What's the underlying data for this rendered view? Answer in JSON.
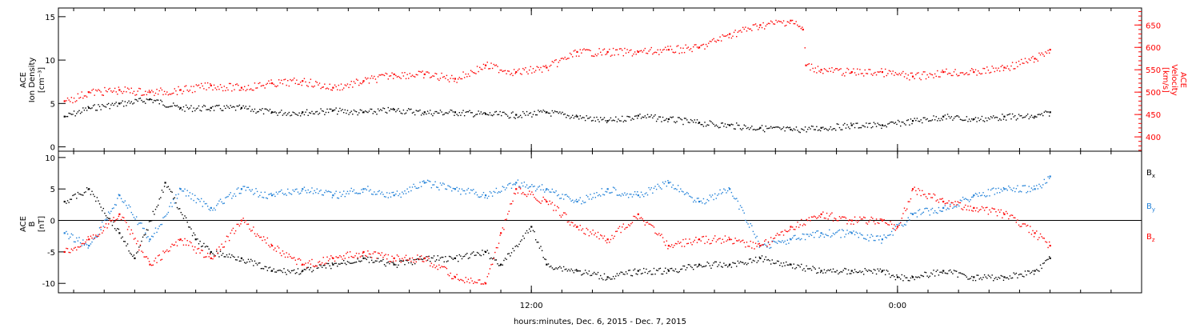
{
  "xaxis": {
    "label": "hours:minutes, Dec.  6, 2015 - Dec.  7, 2015",
    "ticks": [
      {
        "t": 12,
        "label": "12:00"
      },
      {
        "t": 24,
        "label": "0:00"
      }
    ],
    "range_hours": [
      -3.5,
      32
    ]
  },
  "chart_data": [
    {
      "type": "scatter",
      "panel": "top",
      "ylabel_lines": [
        "ACE",
        "Ion Density",
        "[cm⁻³]"
      ],
      "ylim": [
        -0.5,
        16
      ],
      "yticks": [
        0,
        5,
        10,
        15
      ],
      "y2label_lines": [
        "ACE",
        "Velocity",
        "[km/s]"
      ],
      "y2lim": [
        368,
        688
      ],
      "y2ticks": [
        400,
        450,
        500,
        550,
        600,
        650
      ],
      "series": [
        {
          "color": "#000000",
          "axis": "left",
          "x_hours": [
            -3.3,
            -2.5,
            -1.5,
            -0.5,
            0.5,
            1.5,
            2.5,
            3.5,
            4.5,
            5.5,
            6.5,
            7.5,
            8.5,
            9.5,
            10.5,
            11.5,
            12.5,
            13.5,
            14.5,
            15.5,
            16.5,
            17.5,
            18.5,
            19.5,
            20.5,
            21.5,
            22.5,
            23.5,
            24.5,
            25.5,
            26.5,
            27.5,
            28.5,
            29.0
          ],
          "values": [
            3.5,
            4.5,
            5.0,
            5.5,
            4.5,
            4.5,
            4.5,
            4.0,
            4.0,
            4.2,
            4.0,
            4.3,
            4.0,
            4.0,
            3.8,
            3.7,
            4.0,
            3.5,
            3.0,
            3.6,
            3.2,
            2.8,
            2.5,
            2.2,
            2.0,
            2.2,
            2.5,
            2.5,
            3.0,
            3.5,
            3.2,
            3.5,
            3.5,
            4.0
          ]
        },
        {
          "color": "#ff0000",
          "axis": "right",
          "x_hours": [
            -3.3,
            -2.5,
            -1.5,
            -0.5,
            0.5,
            1.5,
            2.5,
            3.5,
            4.5,
            5.5,
            6.5,
            7.5,
            8.5,
            9.5,
            10.5,
            11.5,
            12.5,
            13.5,
            14.5,
            15.5,
            16.5,
            17.5,
            18.5,
            19.5,
            20.5,
            20.9,
            21.0,
            21.5,
            22.5,
            23.5,
            24.5,
            25.5,
            26.5,
            27.5,
            28.5,
            29.0
          ],
          "values": [
            480,
            500,
            505,
            500,
            505,
            515,
            510,
            520,
            525,
            510,
            525,
            540,
            540,
            530,
            560,
            545,
            555,
            590,
            590,
            590,
            595,
            600,
            630,
            650,
            660,
            640,
            560,
            550,
            545,
            545,
            535,
            545,
            545,
            555,
            575,
            595
          ]
        }
      ]
    },
    {
      "type": "scatter",
      "panel": "bottom",
      "ylabel_lines": [
        "ACE",
        "B",
        "[nT]"
      ],
      "ylim": [
        -11.5,
        11
      ],
      "yticks": [
        -10,
        -5,
        0,
        5,
        10
      ],
      "zero_line": true,
      "series": [
        {
          "name": "B",
          "subscript": "x",
          "color": "#000000",
          "x_hours": [
            -3.3,
            -2.5,
            -1.5,
            -1.0,
            0.0,
            1.0,
            1.5,
            2.5,
            3.5,
            4.5,
            5.5,
            6.5,
            7.5,
            8.5,
            9.5,
            10.5,
            11.0,
            12.0,
            12.5,
            13.5,
            14.5,
            15.5,
            16.5,
            17.5,
            18.5,
            19.5,
            20.5,
            21.5,
            22.5,
            23.5,
            24.0,
            24.5,
            25.5,
            26.5,
            27.5,
            28.5,
            29.0
          ],
          "values": [
            3,
            5,
            -2,
            -6,
            6,
            -3,
            -5,
            -6,
            -8,
            -8,
            -7,
            -6,
            -7,
            -6,
            -6,
            -5,
            -7,
            -1,
            -7,
            -8,
            -9,
            -8,
            -8,
            -7,
            -7,
            -6,
            -7,
            -8,
            -8,
            -8,
            -9,
            -9,
            -8,
            -9,
            -9,
            -8,
            -6
          ]
        },
        {
          "name": "B",
          "subscript": "y",
          "color": "#1e7fd7",
          "x_hours": [
            -3.3,
            -2.5,
            -1.5,
            -0.5,
            0.5,
            1.5,
            2.5,
            3.5,
            4.5,
            5.5,
            6.5,
            7.5,
            8.5,
            9.5,
            10.5,
            11.5,
            12.5,
            13.5,
            14.5,
            15.5,
            16.5,
            17.5,
            18.5,
            19.5,
            20.5,
            21.5,
            22.5,
            23.5,
            24.5,
            25.5,
            26.5,
            27.5,
            28.5,
            29.0
          ],
          "values": [
            -2,
            -4,
            4,
            -3,
            5,
            2,
            5,
            4,
            5,
            4,
            5,
            4,
            6,
            5,
            4,
            6,
            5,
            3,
            5,
            4,
            6,
            3,
            5,
            -4,
            -3,
            -2,
            -2,
            -3,
            1,
            2,
            4,
            5,
            5,
            7
          ]
        },
        {
          "name": "B",
          "subscript": "z",
          "color": "#ff0000",
          "x_hours": [
            -3.3,
            -2.5,
            -1.5,
            -0.5,
            0.5,
            1.5,
            2.5,
            3.5,
            4.5,
            5.5,
            6.5,
            7.5,
            8.5,
            9.5,
            10.5,
            11.0,
            11.5,
            12.5,
            13.5,
            14.5,
            15.5,
            16.5,
            17.5,
            18.5,
            19.5,
            20.5,
            21.5,
            22.5,
            23.5,
            24.0,
            24.5,
            25.5,
            26.5,
            27.5,
            28.5,
            29.0
          ],
          "values": [
            -5,
            -3,
            1,
            -7,
            -3,
            -6,
            0,
            -4,
            -7,
            -6,
            -5,
            -6,
            -6,
            -9,
            -10,
            -2,
            5,
            3,
            -1,
            -3,
            1,
            -4,
            -3,
            -3,
            -4,
            -1,
            1,
            0,
            0,
            -1,
            5,
            3,
            2,
            1,
            -2,
            -4
          ]
        }
      ]
    }
  ]
}
